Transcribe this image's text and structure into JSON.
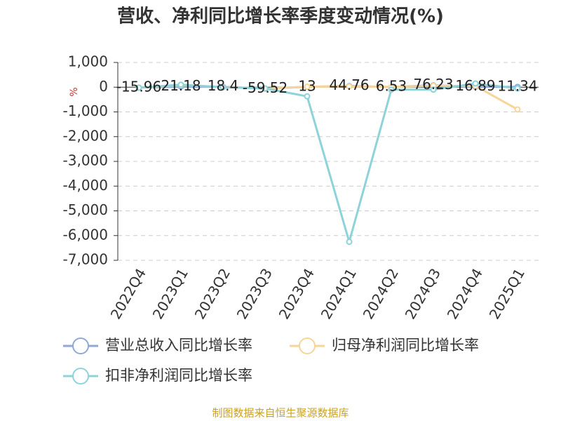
{
  "chart_data": {
    "type": "line",
    "title": "营收、净利同比增长率季度变动情况(%)",
    "y_label": "%",
    "source": "制图数据来自恒生聚源数据库",
    "categories": [
      "2022Q4",
      "2023Q1",
      "2023Q2",
      "2023Q3",
      "2023Q4",
      "2024Q1",
      "2024Q2",
      "2024Q3",
      "2024Q4",
      "2025Q1"
    ],
    "series": [
      {
        "name": "营业总收入同比增长率",
        "color": "#8fa8d8",
        "values": [
          -15.96,
          21.18,
          18.4,
          -59.52,
          13,
          44.76,
          6.53,
          76.23,
          16.89,
          11.34
        ]
      },
      {
        "name": "归母净利润同比增长率",
        "color": "#f7d59a",
        "values": [
          -20,
          80,
          10,
          -60,
          20,
          30,
          10,
          60,
          50,
          -900
        ]
      },
      {
        "name": "扣非净利润同比增长率",
        "color": "#8dd3da",
        "values": [
          -20,
          100,
          0,
          -50,
          -370,
          -6250,
          -100,
          -100,
          150,
          -50
        ]
      }
    ],
    "ylim": [
      -7000,
      1000
    ],
    "yticks": [
      {
        "value": -7000,
        "label": "-7,000"
      },
      {
        "value": -6000,
        "label": "-6,000"
      },
      {
        "value": -5000,
        "label": "-5,000"
      },
      {
        "value": -4000,
        "label": "-4,000"
      },
      {
        "value": -3000,
        "label": "-3,000"
      },
      {
        "value": -2000,
        "label": "-2,000"
      },
      {
        "value": -1000,
        "label": "-1,000"
      },
      0,
      {
        "value": 1000,
        "label": "1,000"
      }
    ],
    "grid": true
  }
}
